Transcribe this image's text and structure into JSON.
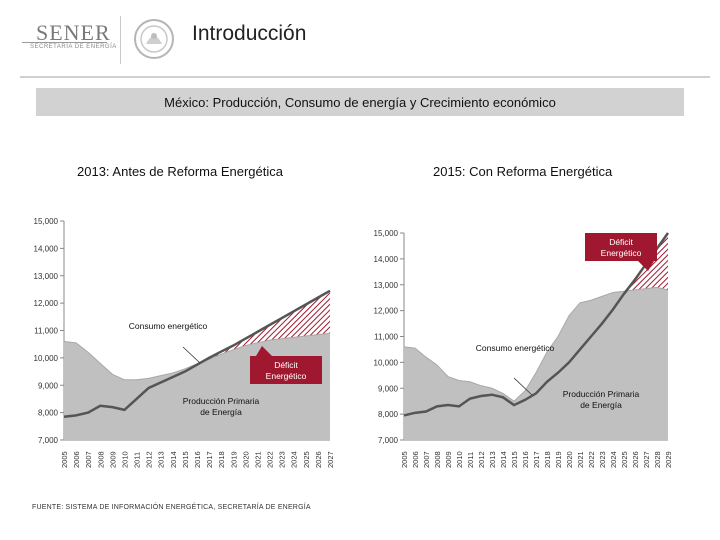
{
  "header": {
    "logo_text": "SENER",
    "logo_subtitle": "SECRETARÍA DE ENERGÍA",
    "title": "Introducción"
  },
  "banner": {
    "text": "México: Producción, Consumo de energía y Crecimiento económico"
  },
  "source_prefix": "FUENTE:",
  "source_text": " SISTEMA DE INFORMACIÓN ENERGÉTICA, SECRETARÍA DE ENERGÍA",
  "colors": {
    "area": "#c0c0c0",
    "deficit": "#a01830",
    "line": "#555555",
    "banner": "#d2d2d2"
  },
  "chart_data": [
    {
      "type": "area",
      "title": "2013: Antes de Reforma Energética",
      "x": [
        2005,
        2006,
        2007,
        2008,
        2009,
        2010,
        2011,
        2012,
        2013,
        2014,
        2015,
        2016,
        2017,
        2018,
        2019,
        2020,
        2021,
        2022,
        2023,
        2024,
        2025,
        2026,
        2027
      ],
      "ylim": [
        7000,
        15000
      ],
      "yticks": [
        7000,
        8000,
        9000,
        10000,
        11000,
        12000,
        13000,
        14000,
        15000
      ],
      "ytick_labels": [
        "7,000",
        "8,000",
        "9,000",
        "10,000",
        "11,000",
        "12,000",
        "13,000",
        "14,000",
        "15,000"
      ],
      "series": [
        {
          "name": "Producción Primaria de Energía",
          "values": [
            10600,
            10550,
            10200,
            9800,
            9400,
            9200,
            9200,
            9250,
            9350,
            9450,
            9600,
            9780,
            9950,
            10130,
            10300,
            10450,
            10550,
            10650,
            10700,
            10750,
            10800,
            10850,
            10900
          ]
        },
        {
          "name": "Consumo energético",
          "values": [
            7850,
            7900,
            8000,
            8250,
            8200,
            8100,
            8500,
            8900,
            9100,
            9300,
            9500,
            9750,
            10000,
            10230,
            10450,
            10700,
            10950,
            11200,
            11450,
            11700,
            11950,
            12200,
            12450
          ]
        }
      ],
      "annotations": {
        "consumption": "Consumo energético",
        "deficit": "Déficit Energético",
        "production": "Producción Primaria de Energía"
      }
    },
    {
      "type": "area",
      "title": "2015: Con Reforma Energética",
      "x": [
        2005,
        2006,
        2007,
        2008,
        2009,
        2010,
        2011,
        2012,
        2013,
        2014,
        2015,
        2016,
        2017,
        2018,
        2019,
        2020,
        2021,
        2022,
        2023,
        2024,
        2025,
        2026,
        2027,
        2028,
        2029
      ],
      "ylim": [
        7000,
        15000
      ],
      "yticks": [
        7000,
        8000,
        9000,
        10000,
        11000,
        12000,
        13000,
        14000,
        15000
      ],
      "ytick_labels": [
        "7,000",
        "8,000",
        "9,000",
        "10,000",
        "11,000",
        "12,000",
        "13,000",
        "14,000",
        "15,000"
      ],
      "series": [
        {
          "name": "Producción Primaria de Energía",
          "values": [
            10600,
            10550,
            10200,
            9900,
            9450,
            9300,
            9250,
            9100,
            9000,
            8800,
            8500,
            8900,
            9600,
            10400,
            11000,
            11800,
            12300,
            12400,
            12550,
            12700,
            12750,
            12800,
            12850,
            12900,
            12800
          ]
        },
        {
          "name": "Consumo energético",
          "values": [
            7950,
            8050,
            8100,
            8300,
            8350,
            8300,
            8600,
            8700,
            8750,
            8650,
            8350,
            8550,
            8800,
            9250,
            9600,
            10000,
            10500,
            11000,
            11500,
            12050,
            12650,
            13200,
            13800,
            14400,
            15000
          ]
        }
      ],
      "annotations": {
        "consumption": "Consumo energético",
        "deficit": "Déficit Energético",
        "production": "Producción Primaria de Energía"
      }
    }
  ]
}
